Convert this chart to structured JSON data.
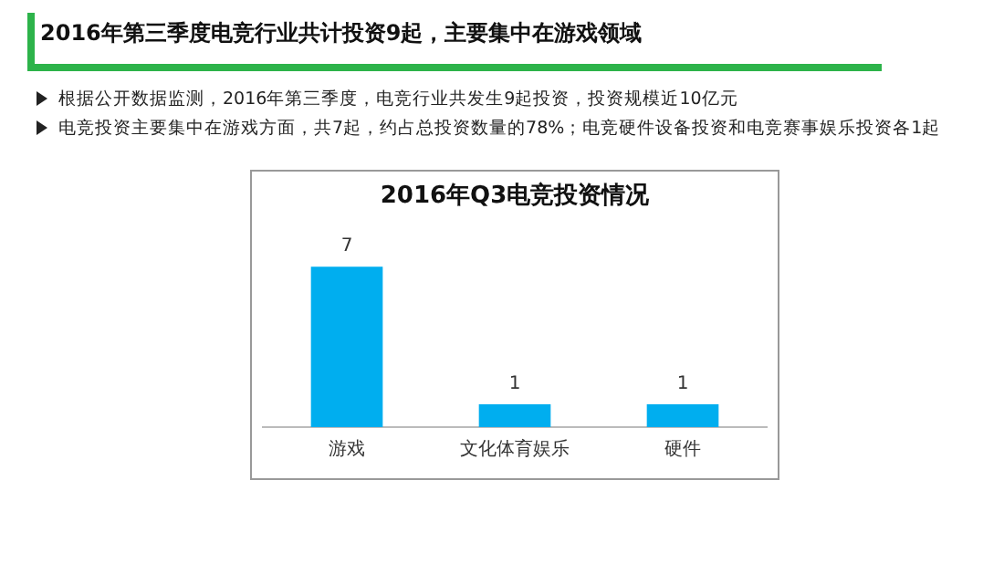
{
  "chart_data": {
    "type": "bar",
    "title": "2016年Q3电竞投资情况",
    "annotations": [
      "2016年第三季度电竞行业共计投资9起，主要集中在游戏领域",
      "根据公开数据监测，2016年第三季度，电竞行业共发生9起投资，投资规模近10亿元",
      "电竞投资主要集中在游戏方面，共7起，约占总投资数量的78%；电竞硬件设备投资和电竞赛事娱乐投资各1起"
    ],
    "categories": [
      "游戏",
      "文化体育娱乐",
      "硬件"
    ],
    "values": [
      7,
      1,
      1
    ],
    "color": "#00aeef",
    "data_labels": true,
    "tick_labels": "x",
    "grid": false,
    "legend": false
  }
}
